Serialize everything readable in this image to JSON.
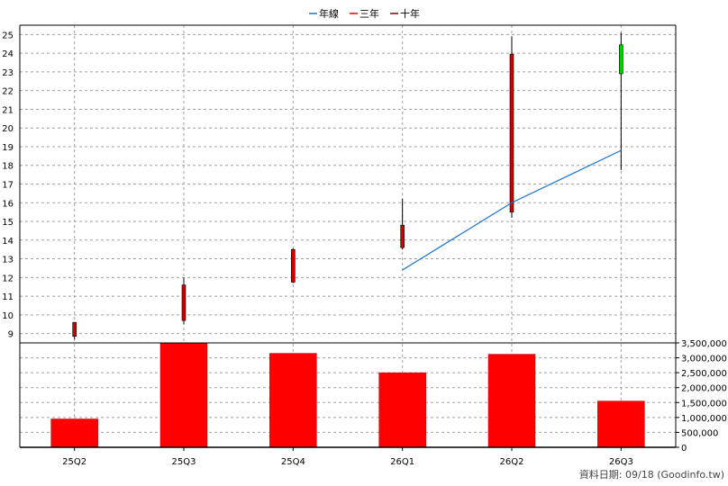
{
  "legend": [
    {
      "label": "年線",
      "color": "#1874cd"
    },
    {
      "label": "三年",
      "color": "#ff0000"
    },
    {
      "label": "十年",
      "color": "#8b0000"
    }
  ],
  "footer": "資料日期: 09/18  (Goodinfo.tw)",
  "chart_data": {
    "type": "candlestick",
    "categories": [
      "25Q2",
      "25Q3",
      "25Q4",
      "26Q1",
      "26Q2",
      "26Q3"
    ],
    "price": {
      "ylim": [
        8.5,
        25.5
      ],
      "yticks": [
        9,
        10,
        11,
        12,
        13,
        14,
        15,
        16,
        17,
        18,
        19,
        20,
        21,
        22,
        23,
        24,
        25
      ],
      "candles": [
        {
          "open": 9.6,
          "close": 8.85,
          "high": 9.6,
          "low": 8.7,
          "color": "#cc0000"
        },
        {
          "open": 11.6,
          "close": 9.7,
          "high": 12.0,
          "low": 9.5,
          "color": "#cc0000"
        },
        {
          "open": 13.5,
          "close": 11.75,
          "high": 13.55,
          "low": 11.7,
          "color": "#cc0000"
        },
        {
          "open": 14.8,
          "close": 13.6,
          "high": 16.2,
          "low": 13.5,
          "color": "#cc0000"
        },
        {
          "open": 23.95,
          "close": 15.5,
          "high": 24.9,
          "low": 15.2,
          "color": "#cc0000"
        },
        {
          "open": 24.45,
          "close": 22.9,
          "high": 25.1,
          "low": 17.75,
          "color": "#00cc00"
        }
      ],
      "series": [
        {
          "name": "年線",
          "color": "#1874cd",
          "values": [
            null,
            null,
            null,
            12.4,
            16.0,
            18.8
          ]
        }
      ]
    },
    "volume": {
      "ylim": [
        0,
        3500000
      ],
      "yticks": [
        0,
        500000,
        1000000,
        1500000,
        2000000,
        2500000,
        3000000,
        3500000
      ],
      "ytick_labels": [
        "0",
        "500,000",
        "1,000,000",
        "1,500,000",
        "2,000,000",
        "2,500,000",
        "3,000,000",
        "3,500,000"
      ],
      "values": [
        950000,
        3500000,
        3150000,
        2500000,
        3120000,
        1550000
      ],
      "color": "#ff0000"
    },
    "grid": true
  }
}
